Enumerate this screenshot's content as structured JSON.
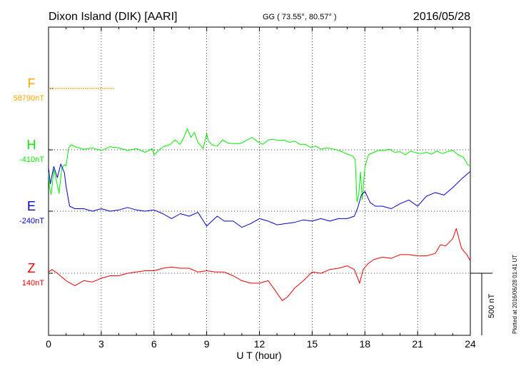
{
  "header": {
    "station": "Dixon Island (DIK)  [AARI]",
    "coords": "GG ( 73.55°,  80.57° )",
    "date": "2016/05/28"
  },
  "footer": {
    "plotted": "Plotted at 2016/06/28 01:41 UT"
  },
  "scale_bar": {
    "label": "500 nT",
    "value_nT": 500
  },
  "chart_data": {
    "type": "line",
    "title": "",
    "xlabel": "U T (hour)",
    "ylabel": "",
    "xlim": [
      0,
      24
    ],
    "x_ticks": [
      0,
      3,
      6,
      9,
      12,
      15,
      18,
      21,
      24
    ],
    "grid": true,
    "y_unit": "nT",
    "series": [
      {
        "name": "F",
        "baseline_label": "58790nT",
        "baseline_nT": 58790,
        "color": "#ffa500",
        "x": [
          0,
          0.5,
          1,
          1.5,
          2,
          2.5,
          3,
          3.5,
          3.75
        ],
        "y": [
          0,
          0,
          0,
          0,
          0,
          0,
          0,
          0,
          0
        ]
      },
      {
        "name": "H",
        "baseline_label": "-410nT",
        "baseline_nT": -410,
        "color": "#00ee00",
        "x": [
          0,
          0.05,
          0.15,
          0.3,
          0.45,
          0.6,
          0.75,
          0.9,
          1.0,
          1.15,
          1.3,
          1.6,
          2.0,
          2.5,
          3.0,
          3.5,
          4.0,
          4.5,
          5.0,
          5.5,
          5.9,
          6.0,
          6.3,
          6.6,
          6.9,
          7.2,
          7.5,
          7.7,
          7.9,
          8.1,
          8.3,
          8.5,
          8.8,
          9.0,
          9.1,
          9.3,
          9.6,
          9.9,
          10.2,
          10.5,
          10.8,
          11.0,
          11.3,
          11.6,
          11.9,
          12.2,
          12.5,
          12.8,
          13.1,
          13.4,
          13.7,
          14.0,
          14.3,
          14.6,
          14.9,
          15.2,
          15.5,
          15.8,
          16.1,
          16.4,
          16.7,
          17.0,
          17.3,
          17.45,
          17.55,
          17.65,
          17.75,
          17.85,
          18.0,
          18.2,
          18.5,
          18.8,
          19.1,
          19.4,
          19.7,
          20.0,
          20.3,
          20.6,
          20.9,
          21.2,
          21.5,
          21.8,
          22.1,
          22.4,
          22.7,
          23.0,
          23.3,
          23.6,
          23.85,
          24.0
        ],
        "y": [
          -180,
          -300,
          -360,
          -160,
          -250,
          -350,
          -150,
          -120,
          -130,
          20,
          40,
          20,
          5,
          15,
          -5,
          25,
          15,
          -5,
          10,
          -20,
          10,
          -40,
          0,
          30,
          40,
          80,
          45,
          100,
          170,
          100,
          140,
          60,
          10,
          130,
          70,
          40,
          30,
          80,
          55,
          50,
          50,
          55,
          80,
          100,
          65,
          45,
          80,
          85,
          75,
          80,
          60,
          70,
          45,
          45,
          20,
          30,
          5,
          15,
          10,
          0,
          -15,
          -35,
          -50,
          -80,
          -420,
          -360,
          -180,
          -400,
          -140,
          -40,
          -20,
          -5,
          -5,
          5,
          -20,
          -15,
          -40,
          -10,
          -25,
          -30,
          -20,
          -35,
          -10,
          -30,
          -15,
          -5,
          -40,
          -60,
          -120,
          -130
        ]
      },
      {
        "name": "E",
        "baseline_label": "-240nT",
        "baseline_nT": -240,
        "color": "#0000cc",
        "x": [
          0,
          0.1,
          0.3,
          0.5,
          0.7,
          0.9,
          1.0,
          1.2,
          1.5,
          2.0,
          2.5,
          3.0,
          3.5,
          4.0,
          4.5,
          5.0,
          5.5,
          6.0,
          6.5,
          7.0,
          7.5,
          8.0,
          8.5,
          9.0,
          9.3,
          9.6,
          10.0,
          10.5,
          11.0,
          11.5,
          12.0,
          12.5,
          13.0,
          13.5,
          14.0,
          14.5,
          15.0,
          15.5,
          16.0,
          16.5,
          17.0,
          17.4,
          17.6,
          17.8,
          18.0,
          18.3,
          18.6,
          19.0,
          19.5,
          20.0,
          20.5,
          21.0,
          21.5,
          22.0,
          22.5,
          23.0,
          23.5,
          24.0
        ],
        "y": [
          350,
          220,
          360,
          270,
          380,
          310,
          200,
          40,
          20,
          20,
          0,
          20,
          0,
          10,
          30,
          10,
          0,
          10,
          -20,
          -60,
          -20,
          -40,
          -10,
          -120,
          -80,
          -40,
          -80,
          -80,
          -130,
          -100,
          -60,
          -80,
          -110,
          -100,
          -90,
          -70,
          -80,
          -60,
          -80,
          -60,
          -60,
          -40,
          30,
          130,
          160,
          70,
          40,
          40,
          20,
          60,
          90,
          40,
          120,
          150,
          130,
          190,
          260,
          320
        ]
      },
      {
        "name": "Z",
        "baseline_label": "140nT",
        "baseline_nT": 140,
        "color": "#ee0000",
        "x": [
          0,
          0.2,
          0.5,
          1.0,
          1.5,
          2.0,
          2.5,
          3.0,
          3.5,
          4.0,
          4.5,
          5.0,
          5.5,
          6.0,
          6.5,
          7.0,
          7.5,
          8.0,
          8.5,
          9.0,
          9.5,
          10.0,
          10.5,
          11.0,
          11.5,
          12.0,
          12.5,
          13.0,
          13.3,
          13.6,
          14.0,
          14.5,
          15.0,
          15.5,
          16.0,
          16.5,
          17.0,
          17.4,
          17.7,
          17.9,
          18.2,
          18.5,
          19.0,
          19.5,
          20.0,
          20.5,
          21.0,
          21.5,
          22.0,
          22.3,
          22.6,
          23.0,
          23.2,
          23.5,
          23.8,
          24.0
        ],
        "y": [
          10,
          30,
          0,
          -60,
          -100,
          -60,
          -70,
          -40,
          -20,
          -20,
          0,
          10,
          20,
          20,
          40,
          50,
          40,
          40,
          10,
          20,
          10,
          10,
          -20,
          -60,
          -80,
          -80,
          -60,
          -160,
          -220,
          -190,
          -120,
          -60,
          10,
          0,
          30,
          40,
          60,
          30,
          -80,
          30,
          80,
          110,
          130,
          120,
          150,
          150,
          140,
          140,
          160,
          230,
          220,
          280,
          360,
          200,
          150,
          100
        ]
      }
    ]
  }
}
